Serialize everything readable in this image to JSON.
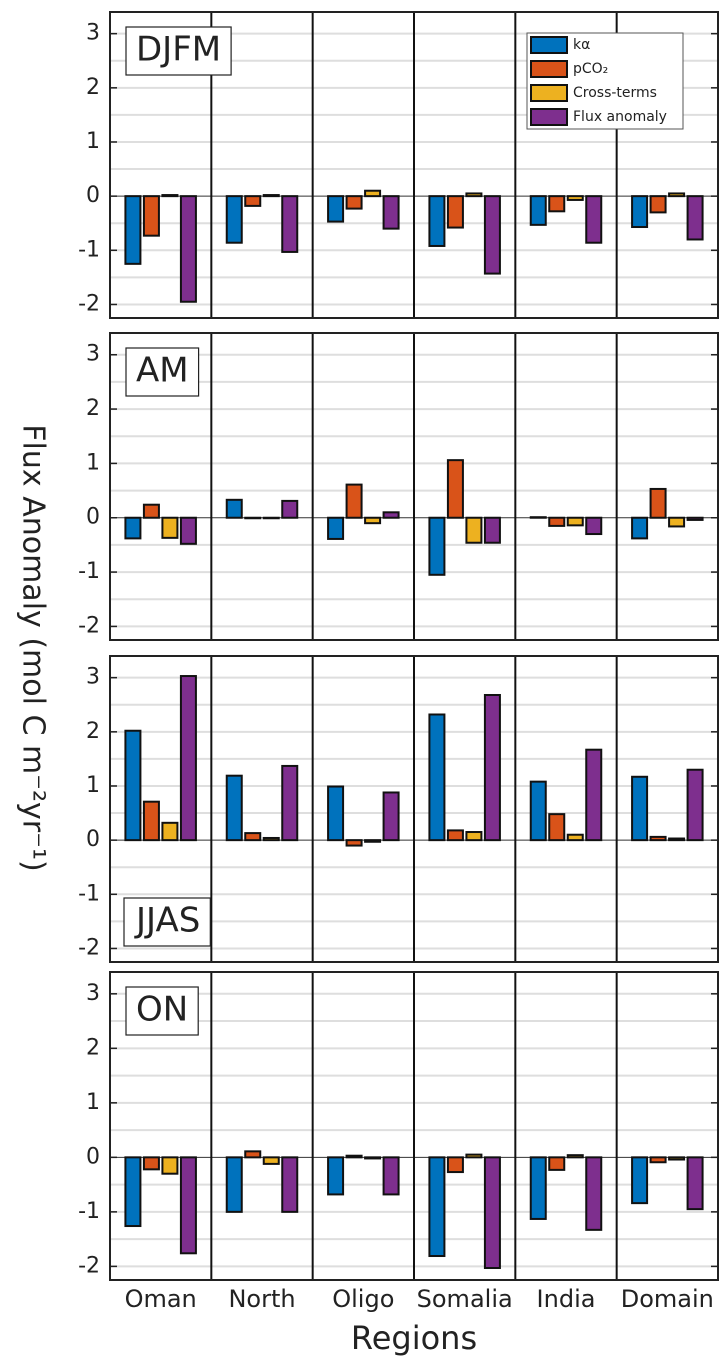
{
  "ylabel": "Flux Anomaly (mol C m⁻²yr⁻¹)",
  "xlabel": "Regions",
  "chart_data": [
    {
      "type": "bar",
      "title": "DJFM",
      "title_corner": "upper left",
      "legend_corner": "upper right",
      "ylim": [
        -2.25,
        3.4
      ],
      "yticks": [
        -2,
        -1,
        0,
        1,
        2,
        3
      ],
      "minor_grid": true,
      "series": [
        {
          "name": "kα",
          "color": "#0072BD",
          "values": [
            -1.25,
            -0.86,
            -0.47,
            -0.92,
            -0.53,
            -0.57
          ]
        },
        {
          "name": "pCO₂",
          "color": "#D95319",
          "values": [
            -0.73,
            -0.18,
            -0.23,
            -0.58,
            -0.28,
            -0.3
          ]
        },
        {
          "name": "Cross-terms",
          "color": "#EDB120",
          "values": [
            0.02,
            0.02,
            0.1,
            0.05,
            -0.07,
            0.05
          ]
        },
        {
          "name": "Flux anomaly",
          "color": "#7E2F8E",
          "values": [
            -1.95,
            -1.03,
            -0.6,
            -1.43,
            -0.86,
            -0.8
          ]
        }
      ]
    },
    {
      "type": "bar",
      "title": "AM",
      "title_corner": "upper left",
      "ylim": [
        -2.25,
        3.4
      ],
      "yticks": [
        -2,
        -1,
        0,
        1,
        2,
        3
      ],
      "minor_grid": true,
      "series": [
        {
          "color": "#0072BD",
          "values": [
            -0.38,
            0.33,
            -0.39,
            -1.05,
            0.01,
            -0.38
          ]
        },
        {
          "color": "#D95319",
          "values": [
            0.24,
            0.0,
            0.61,
            1.06,
            -0.15,
            0.53
          ]
        },
        {
          "color": "#EDB120",
          "values": [
            -0.37,
            0.0,
            -0.1,
            -0.46,
            -0.14,
            -0.16
          ]
        },
        {
          "color": "#7E2F8E",
          "values": [
            -0.48,
            0.31,
            0.1,
            -0.46,
            -0.3,
            -0.04
          ]
        }
      ]
    },
    {
      "type": "bar",
      "title": "JJAS",
      "title_corner": "lower left",
      "ylim": [
        -2.25,
        3.4
      ],
      "yticks": [
        -2,
        -1,
        0,
        1,
        2,
        3
      ],
      "minor_grid": true,
      "series": [
        {
          "color": "#0072BD",
          "values": [
            2.02,
            1.19,
            0.99,
            2.32,
            1.08,
            1.17
          ]
        },
        {
          "color": "#D95319",
          "values": [
            0.71,
            0.13,
            -0.1,
            0.18,
            0.48,
            0.06
          ]
        },
        {
          "color": "#EDB120",
          "values": [
            0.32,
            0.04,
            -0.03,
            0.15,
            0.1,
            0.03
          ]
        },
        {
          "color": "#7E2F8E",
          "values": [
            3.03,
            1.37,
            0.88,
            2.68,
            1.67,
            1.3
          ]
        }
      ]
    },
    {
      "type": "bar",
      "title": "ON",
      "title_corner": "upper left",
      "categories": [
        "Oman",
        "North",
        "Oligo",
        "Somalia",
        "India",
        "Domain"
      ],
      "ylim": [
        -2.25,
        3.4
      ],
      "yticks": [
        -2,
        -1,
        0,
        1,
        2,
        3
      ],
      "minor_grid": true,
      "series": [
        {
          "color": "#0072BD",
          "values": [
            -1.26,
            -1.0,
            -0.68,
            -1.81,
            -1.13,
            -0.84
          ]
        },
        {
          "color": "#D95319",
          "values": [
            -0.22,
            0.11,
            0.03,
            -0.27,
            -0.23,
            -0.09
          ]
        },
        {
          "color": "#EDB120",
          "values": [
            -0.3,
            -0.12,
            -0.02,
            0.05,
            0.04,
            -0.04
          ]
        },
        {
          "color": "#7E2F8E",
          "values": [
            -1.76,
            -1.0,
            -0.68,
            -2.03,
            -1.33,
            -0.95
          ]
        }
      ]
    }
  ]
}
